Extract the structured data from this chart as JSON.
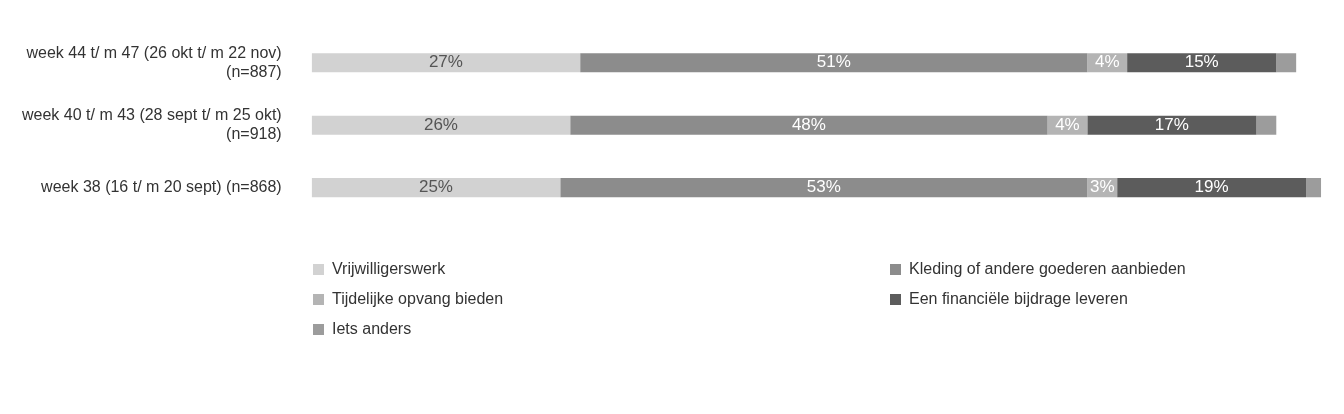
{
  "chart_data": {
    "type": "bar",
    "orientation": "horizontal",
    "stacked": true,
    "legend": "bottom",
    "tick_labels": "y",
    "xlim": [
      0,
      102
    ],
    "categories": [
      "week 44 t/ m 47 (26 okt t/ m 22 nov) (n=887)",
      "week 40 t/ m 43 (28 sept t/ m 25 okt) (n=918)",
      "week 38 (16 t/ m 20 sept) (n=868)"
    ],
    "series": [
      {
        "name": "Vrijwilligerswerk",
        "color": "#d2d2d2",
        "values": [
          27,
          26,
          25
        ],
        "value_labels": [
          "27%",
          "26%",
          "25%"
        ]
      },
      {
        "name": "Kleding of andere goederen aanbieden",
        "color": "#8c8c8c",
        "values": [
          51,
          48,
          53
        ],
        "value_labels": [
          "51%",
          "48%",
          "53%"
        ]
      },
      {
        "name": "Tijdelijke opvang bieden",
        "color": "#b4b4b4",
        "values": [
          4,
          4,
          3
        ],
        "value_labels": [
          "4%",
          "4%",
          "3%"
        ]
      },
      {
        "name": "Een financiële bijdrage leveren",
        "color": "#5c5c5c",
        "values": [
          15,
          17,
          19
        ],
        "value_labels": [
          "15%",
          "17%",
          "19%"
        ]
      },
      {
        "name": "Iets anders",
        "color": "#9c9c9c",
        "values": [
          2,
          2,
          1.5
        ],
        "value_labels": [
          null,
          null,
          null
        ]
      }
    ]
  }
}
